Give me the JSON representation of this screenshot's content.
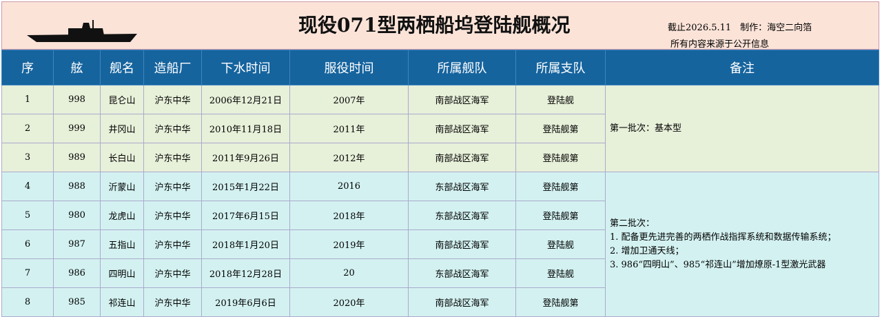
{
  "header": {
    "title": "现役071型两栖船坞登陆舰概况",
    "credit": "截止2026.5.11　制作：海空二向箔",
    "source": "所有内容来源于公开信息"
  },
  "table": {
    "columns": [
      "序",
      "舷",
      "舰名",
      "造船厂",
      "下水时间",
      "服役时间",
      "所属舰队",
      "所属支队",
      "备注"
    ],
    "rows": [
      [
        "1",
        "998",
        "昆仑山",
        "沪东中华",
        "2006年12月21日",
        "2007年",
        "南部战区海军",
        "登陆舰"
      ],
      [
        "2",
        "999",
        "井冈山",
        "沪东中华",
        "2010年11月18日",
        "2011年",
        "南部战区海军",
        "登陆舰第"
      ],
      [
        "3",
        "989",
        "长白山",
        "沪东中华",
        "2011年9月26日",
        "2012年",
        "南部战区海军",
        "登陆舰第"
      ],
      [
        "4",
        "988",
        "沂蒙山",
        "沪东中华",
        "2015年1月22日",
        "2016",
        "东部战区海军",
        "登陆舰第"
      ],
      [
        "5",
        "980",
        "龙虎山",
        "沪东中华",
        "2017年6月15日",
        "2018年",
        "东部战区海军",
        "登陆舰第"
      ],
      [
        "6",
        "987",
        "五指山",
        "沪东中华",
        "2018年1月20日",
        "2019年",
        "南部战区海军",
        "登陆舰"
      ],
      [
        "7",
        "986",
        "四明山",
        "沪东中华",
        "2018年12月28日",
        "20",
        "东部战区海军",
        "登陆舰"
      ],
      [
        "8",
        "985",
        "祁连山",
        "沪东中华",
        "2019年6月6日",
        "2020年",
        "南部战区海军",
        "登陆舰第"
      ]
    ],
    "remarks": [
      {
        "lines": [
          "第一批次：基本型"
        ]
      },
      {
        "lines": [
          "第二批次：",
          "1. 配备更先进完善的两栖作战指挥系统和数据传输系统；",
          "2. 增加卫通天线；",
          "3. 986“四明山”、985“祁连山”增加燎原-1型激光武器"
        ]
      }
    ]
  }
}
